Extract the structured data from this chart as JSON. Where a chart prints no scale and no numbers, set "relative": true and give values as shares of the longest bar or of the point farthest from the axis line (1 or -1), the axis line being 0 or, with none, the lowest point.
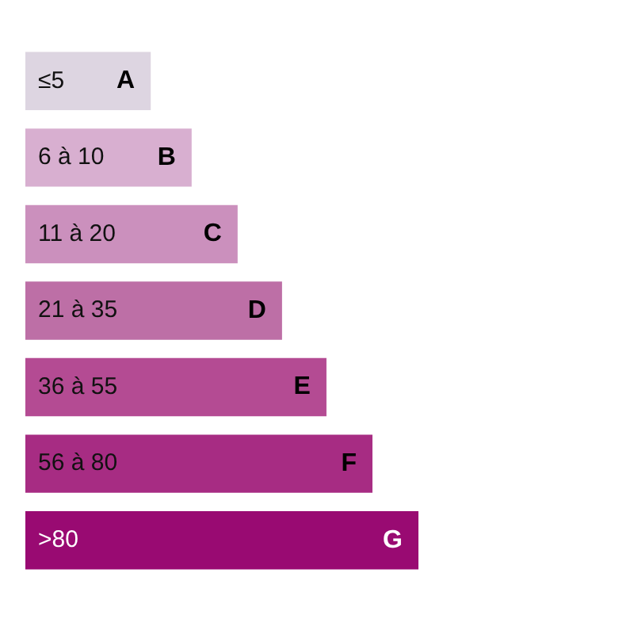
{
  "chart_data": {
    "type": "bar",
    "orientation": "horizontal",
    "relative": true,
    "categories": [
      "≤5",
      "6 à 10",
      "11 à 20",
      "21 à 35",
      "36 à 55",
      "56 à 80",
      ">80"
    ],
    "values": [
      0.319,
      0.423,
      0.54,
      0.653,
      0.766,
      0.883,
      1.0
    ],
    "colors": [
      "#ddd5e1",
      "#d8afd0",
      "#cb90bd",
      "#bd6fa6",
      "#b44b93",
      "#a72c83",
      "#990a72"
    ],
    "annotations": [
      {
        "text": "A",
        "x": 0.319,
        "y": "≤5"
      },
      {
        "text": "B",
        "x": 0.423,
        "y": "6 à 10"
      },
      {
        "text": "C",
        "x": 0.54,
        "y": "11 à 20"
      },
      {
        "text": "D",
        "x": 0.653,
        "y": "21 à 35"
      },
      {
        "text": "E",
        "x": 0.766,
        "y": "36 à 55"
      },
      {
        "text": "F",
        "x": 0.883,
        "y": "56 à 80"
      },
      {
        "text": "G",
        "x": 1.0,
        "y": ">80"
      }
    ]
  }
}
